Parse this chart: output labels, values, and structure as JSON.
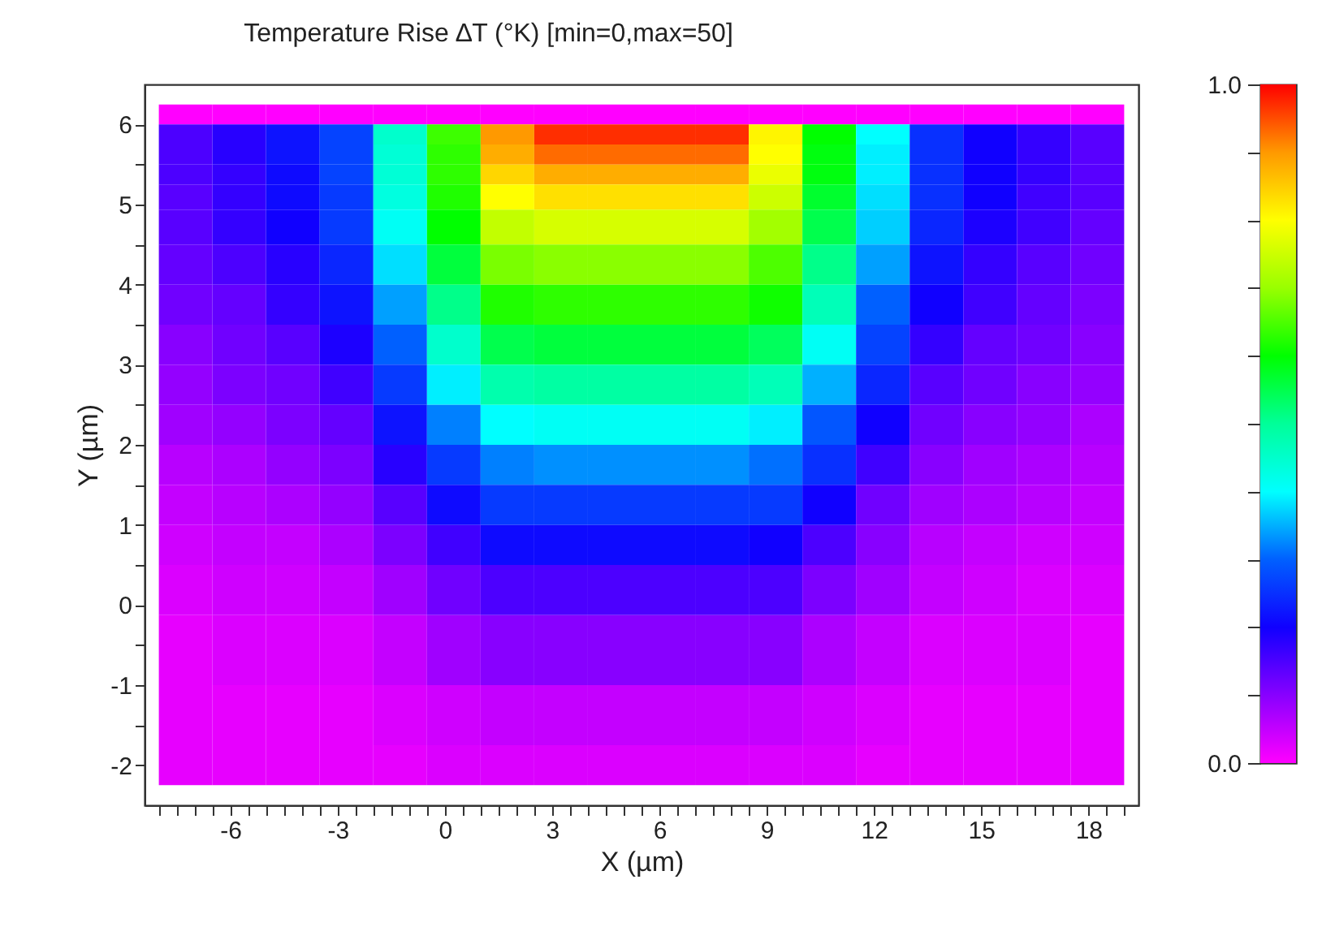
{
  "chart_data": {
    "type": "heatmap",
    "title": "Temperature Rise ∆T (°K) [min=0,max=50]",
    "xlabel": "X (µm)",
    "ylabel": "Y (µm)",
    "x": [
      -7.25,
      -5.75,
      -4.25,
      -2.75,
      -1.25,
      0.25,
      1.75,
      3.25,
      4.75,
      6.25,
      7.75,
      9.25,
      10.75,
      12.25,
      13.75,
      15.25,
      16.75,
      18.25
    ],
    "y": [
      6.125,
      5.875,
      5.625,
      5.375,
      5.125,
      4.75,
      4.25,
      3.75,
      3.25,
      2.75,
      2.25,
      1.75,
      1.25,
      0.75,
      0.25,
      -0.5,
      -1.5,
      -2.0
    ],
    "cells": [
      [
        0,
        0,
        0,
        0,
        0,
        0,
        0,
        0,
        0,
        0,
        0,
        0,
        0,
        0,
        0,
        0,
        0,
        0
      ],
      [
        0.15,
        0.18,
        0.22,
        0.27,
        0.45,
        0.64,
        0.9,
        0.97,
        0.97,
        0.97,
        0.97,
        0.81,
        0.6,
        0.4,
        0.25,
        0.2,
        0.17,
        0.14
      ],
      [
        0.15,
        0.18,
        0.22,
        0.27,
        0.44,
        0.63,
        0.88,
        0.93,
        0.93,
        0.93,
        0.93,
        0.8,
        0.59,
        0.39,
        0.25,
        0.2,
        0.17,
        0.14
      ],
      [
        0.15,
        0.17,
        0.21,
        0.27,
        0.44,
        0.63,
        0.84,
        0.88,
        0.88,
        0.88,
        0.88,
        0.78,
        0.59,
        0.39,
        0.25,
        0.2,
        0.17,
        0.14
      ],
      [
        0.14,
        0.17,
        0.21,
        0.26,
        0.43,
        0.62,
        0.8,
        0.83,
        0.83,
        0.83,
        0.83,
        0.75,
        0.57,
        0.38,
        0.25,
        0.2,
        0.16,
        0.14
      ],
      [
        0.14,
        0.17,
        0.2,
        0.26,
        0.41,
        0.6,
        0.74,
        0.76,
        0.76,
        0.76,
        0.76,
        0.71,
        0.55,
        0.37,
        0.24,
        0.19,
        0.16,
        0.13
      ],
      [
        0.13,
        0.15,
        0.18,
        0.24,
        0.38,
        0.56,
        0.68,
        0.69,
        0.69,
        0.69,
        0.69,
        0.65,
        0.51,
        0.34,
        0.22,
        0.17,
        0.14,
        0.12
      ],
      [
        0.12,
        0.13,
        0.17,
        0.22,
        0.34,
        0.51,
        0.62,
        0.63,
        0.63,
        0.63,
        0.63,
        0.61,
        0.47,
        0.3,
        0.2,
        0.16,
        0.13,
        0.11
      ],
      [
        0.1,
        0.12,
        0.14,
        0.19,
        0.3,
        0.45,
        0.55,
        0.56,
        0.56,
        0.56,
        0.56,
        0.54,
        0.41,
        0.27,
        0.17,
        0.13,
        0.12,
        0.1
      ],
      [
        0.09,
        0.11,
        0.12,
        0.16,
        0.26,
        0.39,
        0.48,
        0.49,
        0.49,
        0.49,
        0.49,
        0.47,
        0.35,
        0.24,
        0.14,
        0.12,
        0.1,
        0.09
      ],
      [
        0.08,
        0.09,
        0.11,
        0.13,
        0.22,
        0.32,
        0.4,
        0.41,
        0.41,
        0.41,
        0.41,
        0.39,
        0.29,
        0.2,
        0.12,
        0.1,
        0.09,
        0.07
      ],
      [
        0.06,
        0.07,
        0.09,
        0.11,
        0.18,
        0.26,
        0.32,
        0.33,
        0.33,
        0.33,
        0.33,
        0.31,
        0.25,
        0.16,
        0.1,
        0.08,
        0.07,
        0.06
      ],
      [
        0.05,
        0.06,
        0.07,
        0.09,
        0.14,
        0.21,
        0.26,
        0.26,
        0.26,
        0.26,
        0.26,
        0.26,
        0.2,
        0.12,
        0.08,
        0.07,
        0.06,
        0.05
      ],
      [
        0.04,
        0.05,
        0.05,
        0.07,
        0.11,
        0.16,
        0.21,
        0.21,
        0.21,
        0.21,
        0.21,
        0.2,
        0.15,
        0.1,
        0.06,
        0.05,
        0.04,
        0.04
      ],
      [
        0.03,
        0.04,
        0.04,
        0.05,
        0.08,
        0.12,
        0.15,
        0.15,
        0.15,
        0.15,
        0.15,
        0.15,
        0.11,
        0.08,
        0.05,
        0.04,
        0.03,
        0.03
      ],
      [
        0.02,
        0.03,
        0.03,
        0.03,
        0.05,
        0.08,
        0.1,
        0.1,
        0.1,
        0.1,
        0.1,
        0.1,
        0.07,
        0.05,
        0.03,
        0.03,
        0.03,
        0.02
      ],
      [
        0.02,
        0.02,
        0.02,
        0.02,
        0.03,
        0.04,
        0.05,
        0.05,
        0.05,
        0.05,
        0.05,
        0.05,
        0.04,
        0.03,
        0.02,
        0.02,
        0.02,
        0.02
      ],
      [
        0.02,
        0.02,
        0.02,
        0.02,
        0.02,
        0.03,
        0.03,
        0.03,
        0.03,
        0.03,
        0.03,
        0.03,
        0.03,
        0.02,
        0.02,
        0.02,
        0.02,
        0.02
      ]
    ],
    "colors": [
      "#ff00ff",
      "#8800ff",
      "#1000ff",
      "#0060ff",
      "#00ffff",
      "#00ff99",
      "#00ff00",
      "#99ff00",
      "#ffff00",
      "#ff9900",
      "#ff0000"
    ],
    "clim": [
      0,
      1
    ],
    "cticks": [
      {
        "value": 0,
        "label": "0.0"
      },
      {
        "value": 0.1,
        "label": null
      },
      {
        "value": 0.2,
        "label": null
      },
      {
        "value": 0.3,
        "label": null
      },
      {
        "value": 0.4,
        "label": null
      },
      {
        "value": 0.5,
        "label": null
      },
      {
        "value": 0.6,
        "label": null
      },
      {
        "value": 0.7,
        "label": null
      },
      {
        "value": 0.8,
        "label": null
      },
      {
        "value": 0.9,
        "label": null
      },
      {
        "value": 1,
        "label": "1.0"
      }
    ],
    "xlim": [
      -8.4,
      19.4
    ],
    "xticks": [
      {
        "value": -8,
        "label": null
      },
      {
        "value": -7.5,
        "label": null
      },
      {
        "value": -7,
        "label": null
      },
      {
        "value": -6.5,
        "label": null
      },
      -6,
      {
        "value": -5.5,
        "label": null
      },
      {
        "value": -5,
        "label": null
      },
      {
        "value": -4.5,
        "label": null
      },
      {
        "value": -4,
        "label": null
      },
      {
        "value": -3.5,
        "label": null
      },
      -3,
      {
        "value": -2.5,
        "label": null
      },
      {
        "value": -2,
        "label": null
      },
      {
        "value": -1.5,
        "label": null
      },
      {
        "value": -1,
        "label": null
      },
      {
        "value": -0.5,
        "label": null
      },
      0,
      {
        "value": 0.5,
        "label": null
      },
      {
        "value": 1,
        "label": null
      },
      {
        "value": 1.5,
        "label": null
      },
      {
        "value": 2,
        "label": null
      },
      {
        "value": 2.5,
        "label": null
      },
      3,
      {
        "value": 3.5,
        "label": null
      },
      {
        "value": 4,
        "label": null
      },
      {
        "value": 4.5,
        "label": null
      },
      {
        "value": 5,
        "label": null
      },
      {
        "value": 5.5,
        "label": null
      },
      6,
      {
        "value": 6.5,
        "label": null
      },
      {
        "value": 7,
        "label": null
      },
      {
        "value": 7.5,
        "label": null
      },
      {
        "value": 8,
        "label": null
      },
      {
        "value": 8.5,
        "label": null
      },
      9,
      {
        "value": 9.5,
        "label": null
      },
      {
        "value": 10,
        "label": null
      },
      {
        "value": 10.5,
        "label": null
      },
      {
        "value": 11,
        "label": null
      },
      {
        "value": 11.5,
        "label": null
      },
      12,
      {
        "value": 12.5,
        "label": null
      },
      {
        "value": 13,
        "label": null
      },
      {
        "value": 13.5,
        "label": null
      },
      {
        "value": 14,
        "label": null
      },
      {
        "value": 14.5,
        "label": null
      },
      15,
      {
        "value": 15.5,
        "label": null
      },
      {
        "value": 16,
        "label": null
      },
      {
        "value": 16.5,
        "label": null
      },
      {
        "value": 17,
        "label": null
      },
      {
        "value": 17.5,
        "label": null
      },
      18,
      {
        "value": 18.5,
        "label": null
      },
      {
        "value": 19,
        "label": null
      }
    ],
    "ylim": [
      -2.5,
      6.5
    ],
    "yticks": [
      -2,
      {
        "value": -1.5,
        "label": null
      },
      -1,
      {
        "value": -0.5,
        "label": null
      },
      0,
      {
        "value": 0.5,
        "label": null
      },
      1,
      {
        "value": 1.5,
        "label": null
      },
      2,
      {
        "value": 2.5,
        "label": null
      },
      3,
      {
        "value": 3.5,
        "label": null
      },
      4,
      {
        "value": 4.5,
        "label": null
      },
      5,
      {
        "value": 5.5,
        "label": null
      },
      6
    ]
  }
}
